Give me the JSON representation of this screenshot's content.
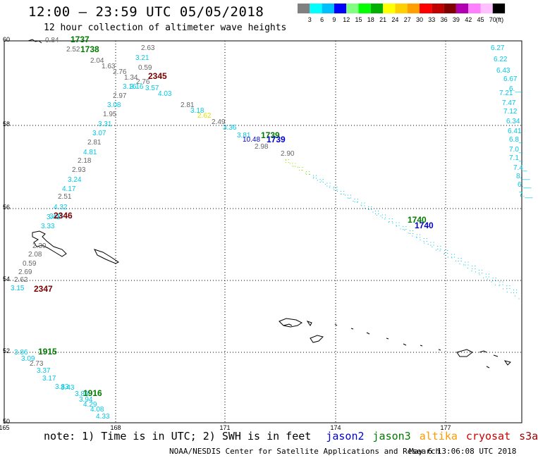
{
  "header": {
    "title": "12:00 – 23:59 UTC 05/05/2018",
    "subtitle": "12 hour collection of altimeter wave heights"
  },
  "legend": {
    "colors": [
      "#808080",
      "#00ffff",
      "#00bfff",
      "#0000ff",
      "#80ff80",
      "#00ff00",
      "#00b000",
      "#ffff00",
      "#ffd000",
      "#ffa000",
      "#ff0000",
      "#c00000",
      "#800000",
      "#b000b0",
      "#ff80ff",
      "#ffc0ff",
      "#000000"
    ],
    "labels": [
      "3",
      "6",
      "9",
      "12",
      "15",
      "18",
      "21",
      "24",
      "27",
      "30",
      "33",
      "36",
      "39",
      "42",
      "45",
      "70"
    ],
    "unit": "(ft)"
  },
  "axes": {
    "lon_labels": [
      "165",
      "168",
      "171",
      "174",
      "177"
    ],
    "lat_labels": [
      "60",
      "58",
      "56",
      "54",
      "52",
      "50"
    ]
  },
  "tracks": {
    "colors": {
      "gray": "#666666",
      "cyan": "#00c8e8",
      "blue": "#0000cc",
      "green": "#007a00",
      "darkred": "#7a0000",
      "yellow": "#e0e000",
      "lime": "#90e000"
    },
    "values": {
      "g1": [
        "0.84",
        "2.52",
        "2.04",
        "1.63",
        "2.76",
        "1.34",
        "2.76",
        "2.97",
        "1.95",
        "2.81",
        "2.18",
        "2.93",
        "2.51",
        "2.30",
        "2.08",
        "0.59",
        "2.69",
        "2.62",
        "2.63",
        "0.59",
        "2.81",
        "2.49",
        "2.98",
        "2.90",
        "2.73"
      ],
      "c1": [
        "3.21",
        "3.57",
        "4.03",
        "3.16",
        "3.16",
        "3.08",
        "3.31",
        "3.07",
        "4.81",
        "3.24",
        "4.17",
        "4.32",
        "3.48",
        "3.41",
        "3.33",
        "3.15",
        "3.18",
        "3.36",
        "3.81",
        "3.86",
        "3.09",
        "3.37",
        "3.17",
        "3.83",
        "3.43",
        "3.89",
        "3.94",
        "4.29",
        "4.08",
        "4.33"
      ],
      "b1": [
        "10.48"
      ],
      "y1": [
        "2.62"
      ],
      "right_col": [
        "6.27",
        "6.22",
        "6.43",
        "6.67",
        "6.__",
        "7.21",
        "7.47",
        "7.12",
        "6.34",
        "6.41",
        "6.8_",
        "7.0_",
        "7.1_",
        "7.4_",
        "8.__",
        "6.__",
        "7.__"
      ]
    },
    "time_labels": [
      {
        "text": "1737",
        "color": "green"
      },
      {
        "text": "1738",
        "color": "green"
      },
      {
        "text": "2345",
        "color": "darkred"
      },
      {
        "text": "1739",
        "color": "green"
      },
      {
        "text": "1739",
        "color": "blue"
      },
      {
        "text": "2346",
        "color": "darkred"
      },
      {
        "text": "1740",
        "color": "green"
      },
      {
        "text": "1740",
        "color": "blue"
      },
      {
        "text": "2347",
        "color": "darkred"
      },
      {
        "text": "1915",
        "color": "green"
      },
      {
        "text": "1916",
        "color": "green"
      }
    ]
  },
  "footer": {
    "note": "note: 1) Time is in UTC; 2) SWH is in feet",
    "missions": [
      {
        "name": "jason2",
        "color": "#0000cc"
      },
      {
        "name": "jason3",
        "color": "#007a00"
      },
      {
        "name": "altika",
        "color": "#ff9900"
      },
      {
        "name": "cryosat",
        "color": "#cc0000"
      },
      {
        "name": "s3a",
        "color": "#990000"
      }
    ],
    "credit": "NOAA/NESDIS Center for Satellite Applications and Research",
    "timestamp": "May  6 13:06:08 UTC 2018"
  }
}
